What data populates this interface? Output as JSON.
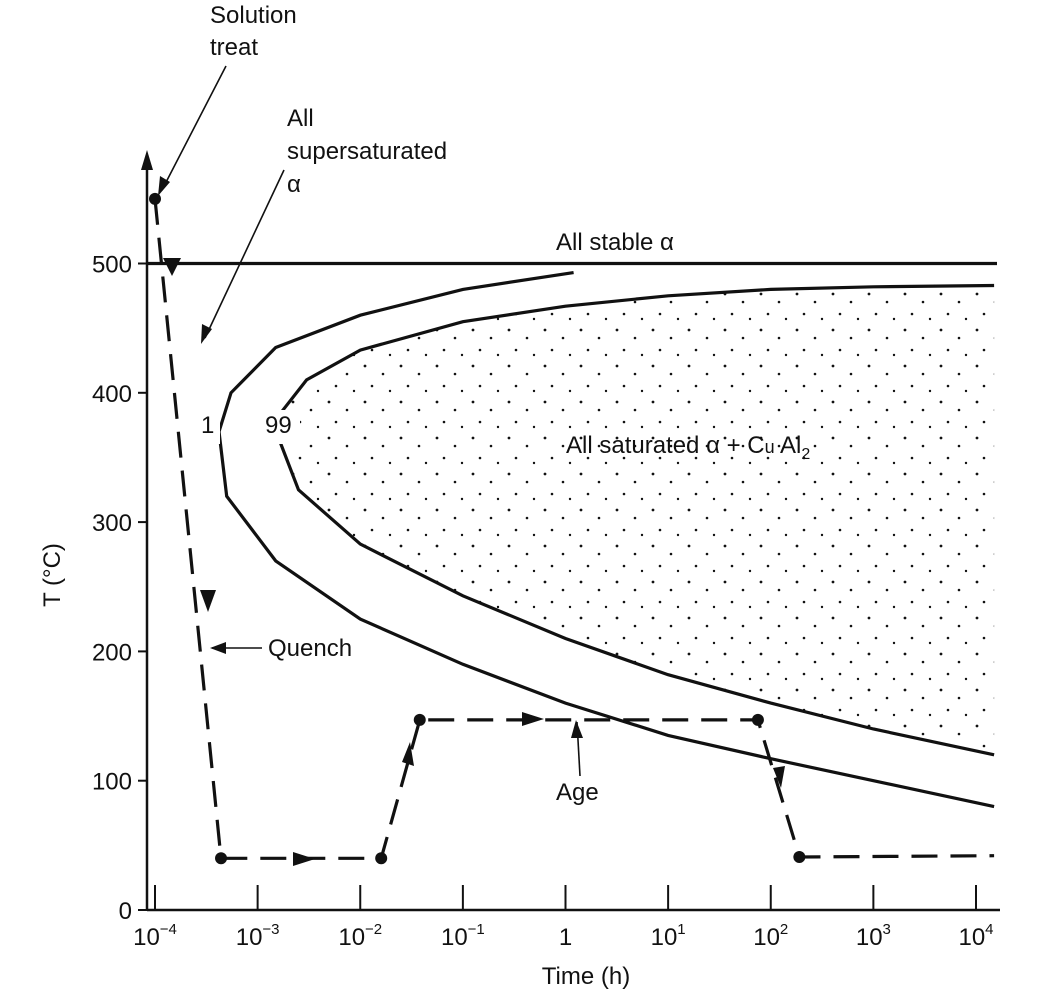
{
  "chart_data": {
    "type": "line",
    "xlabel": "Time (h)",
    "ylabel": "T (°C)",
    "x_scale": "log",
    "xlim": [
      7e-05,
      15000
    ],
    "ylim": [
      0,
      560
    ],
    "x_ticks": [
      {
        "value": 0.0001,
        "base": "10",
        "exp": "−4"
      },
      {
        "value": 0.001,
        "base": "10",
        "exp": "−3"
      },
      {
        "value": 0.01,
        "base": "10",
        "exp": "−2"
      },
      {
        "value": 0.1,
        "base": "10",
        "exp": "−1"
      },
      {
        "value": 1,
        "base": "1",
        "exp": ""
      },
      {
        "value": 10,
        "base": "10",
        "exp": "1"
      },
      {
        "value": 100,
        "base": "10",
        "exp": "2"
      },
      {
        "value": 1000,
        "base": "10",
        "exp": "3"
      },
      {
        "value": 10000,
        "base": "10",
        "exp": "4"
      }
    ],
    "y_ticks": [
      0,
      100,
      200,
      300,
      400,
      500
    ],
    "stable_line": {
      "y": 500,
      "label": "All stable α"
    },
    "curves": [
      {
        "label": "1",
        "points": [
          [
            1.2,
            493
          ],
          [
            0.1,
            480
          ],
          [
            0.01,
            460
          ],
          [
            0.0015,
            435
          ],
          [
            0.00055,
            400
          ],
          [
            0.00042,
            370
          ],
          [
            0.0005,
            320
          ],
          [
            0.0015,
            270
          ],
          [
            0.01,
            225
          ],
          [
            0.1,
            190
          ],
          [
            1,
            160
          ],
          [
            10,
            135
          ],
          [
            100,
            117
          ],
          [
            1000,
            100
          ],
          [
            15000,
            80
          ]
        ]
      },
      {
        "label": "99",
        "points": [
          [
            15000,
            483
          ],
          [
            1000,
            482
          ],
          [
            100,
            480
          ],
          [
            10,
            475
          ],
          [
            1,
            467
          ],
          [
            0.1,
            455
          ],
          [
            0.01,
            433
          ],
          [
            0.003,
            410
          ],
          [
            0.0017,
            385
          ],
          [
            0.0016,
            365
          ],
          [
            0.0025,
            325
          ],
          [
            0.01,
            283
          ],
          [
            0.1,
            243
          ],
          [
            1,
            210
          ],
          [
            10,
            182
          ],
          [
            100,
            160
          ],
          [
            1000,
            140
          ],
          [
            15000,
            120
          ]
        ]
      }
    ],
    "heat_treatment_path": [
      {
        "x": 0.0001,
        "y": 550
      },
      {
        "x": 0.00044,
        "y": 40
      },
      {
        "x": 0.016,
        "y": 40
      },
      {
        "x": 0.038,
        "y": 147
      },
      {
        "x": 75,
        "y": 147
      },
      {
        "x": 190,
        "y": 41
      },
      {
        "x": 15000,
        "y": 42
      }
    ],
    "labels": {
      "solution_treat": [
        "Solution",
        "treat"
      ],
      "supersaturated": [
        "All",
        "supersaturated",
        "α"
      ],
      "quench": "Quench",
      "age": "Age",
      "region_main": "All saturated α + C",
      "region_u": "u",
      "region_al": " Al",
      "region_sub": "2"
    }
  }
}
